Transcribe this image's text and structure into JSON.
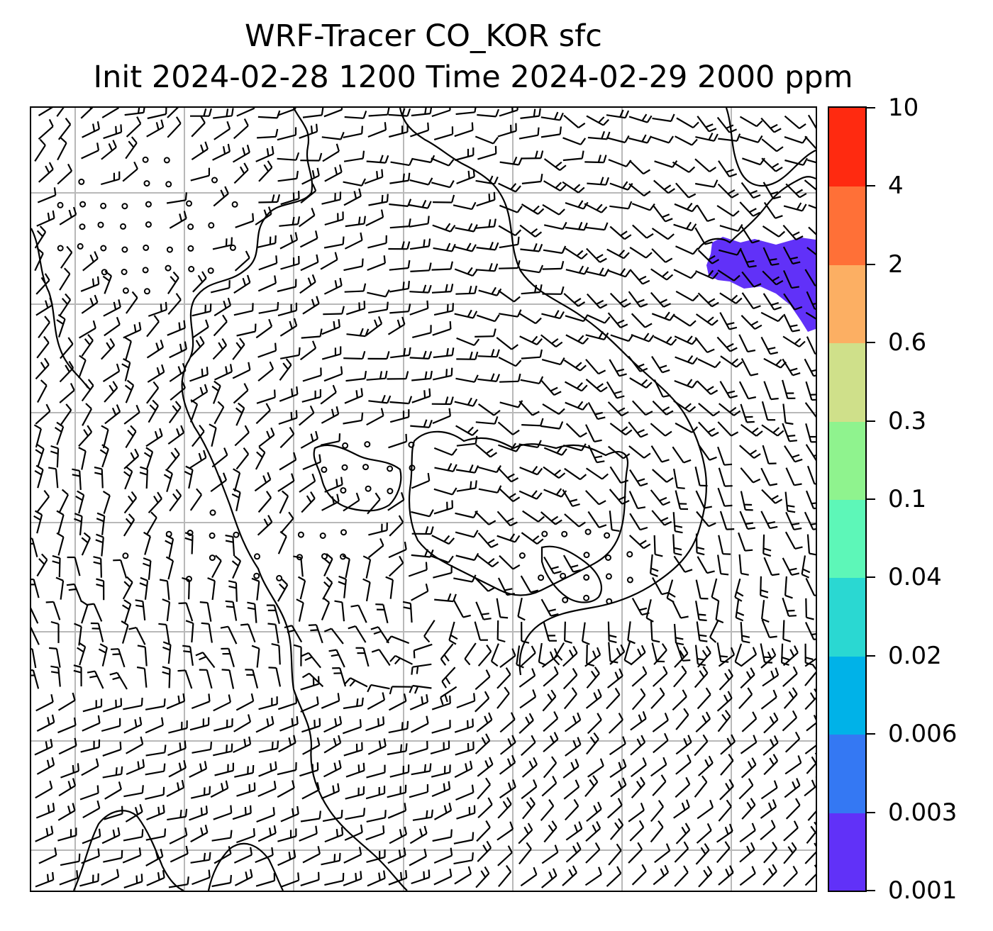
{
  "title": {
    "line1": "WRF-Tracer CO_KOR sfc",
    "line2": "Init 2024-02-28 1200 Time 2024-02-29 2000 ppm"
  },
  "colorbar": {
    "levels": [
      {
        "label": "0.001",
        "color": "#6131f8"
      },
      {
        "label": "0.003",
        "color": "#3478f3"
      },
      {
        "label": "0.006",
        "color": "#00b2e8"
      },
      {
        "label": "0.02",
        "color": "#2ad8d2"
      },
      {
        "label": "0.04",
        "color": "#5df7b8"
      },
      {
        "label": "0.1",
        "color": "#8ff38e"
      },
      {
        "label": "0.3",
        "color": "#cfe08a"
      },
      {
        "label": "0.6",
        "color": "#fcaf63"
      },
      {
        "label": "2",
        "color": "#ff7037"
      },
      {
        "label": "4",
        "color": "#ff2a10"
      },
      {
        "label": "10",
        "color": ""
      }
    ]
  },
  "map": {
    "gridline_color": "#b8b8b8",
    "coastline_color": "#000000",
    "tracer_plume_color": "#6131f8",
    "tracer_plume_level": "0.001",
    "grid_on": true
  }
}
